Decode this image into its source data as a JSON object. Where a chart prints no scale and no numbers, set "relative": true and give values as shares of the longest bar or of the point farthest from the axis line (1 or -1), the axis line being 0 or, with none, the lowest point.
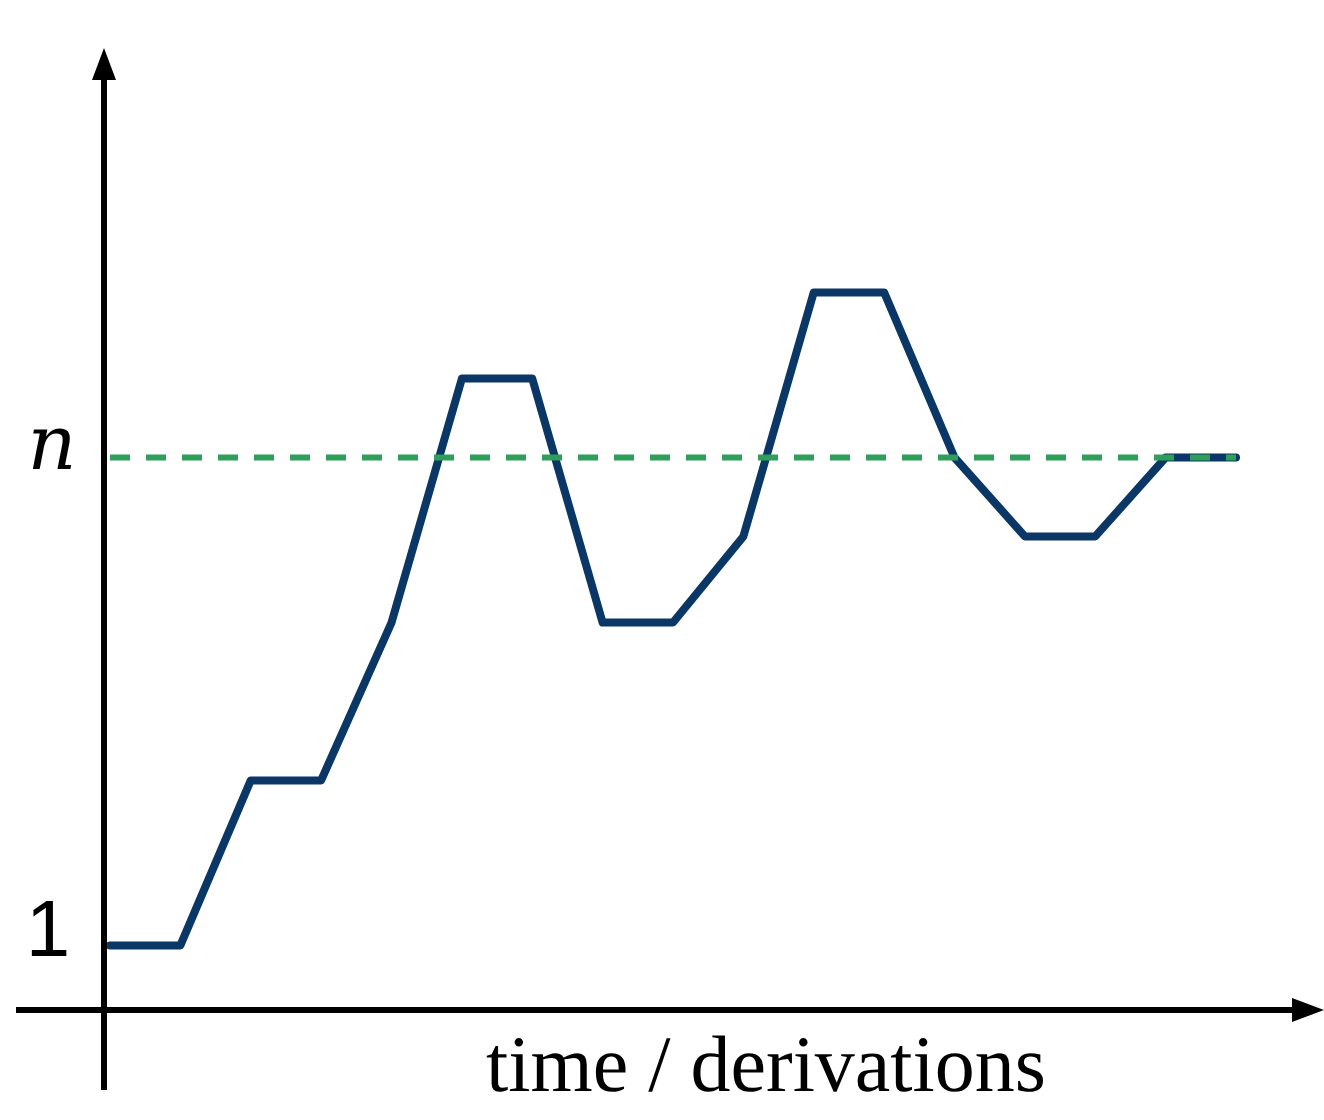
{
  "chart_data": {
    "type": "line",
    "relative": true,
    "xlabel": "time / derivations",
    "categories": [
      null,
      null,
      null,
      null,
      null,
      null,
      null,
      null,
      null,
      null,
      null,
      null,
      null,
      null,
      null,
      null,
      null
    ],
    "series": [
      {
        "color": "#0b3767",
        "values": [
          0.09,
          0.09,
          0.32,
          0.32,
          0.54,
          0.88,
          0.88,
          0.54,
          0.54,
          0.66,
          1,
          1,
          0.77,
          0.66,
          0.66,
          0.77,
          0.77
        ]
      }
    ],
    "ref_lines": [
      {
        "axis": "y",
        "value": 0.77,
        "label": "n",
        "color": "#2e9e5b",
        "line_style": "dashed"
      }
    ],
    "annotations": [
      "1"
    ],
    "legend": false,
    "marker": "none",
    "line_style": "solid"
  }
}
